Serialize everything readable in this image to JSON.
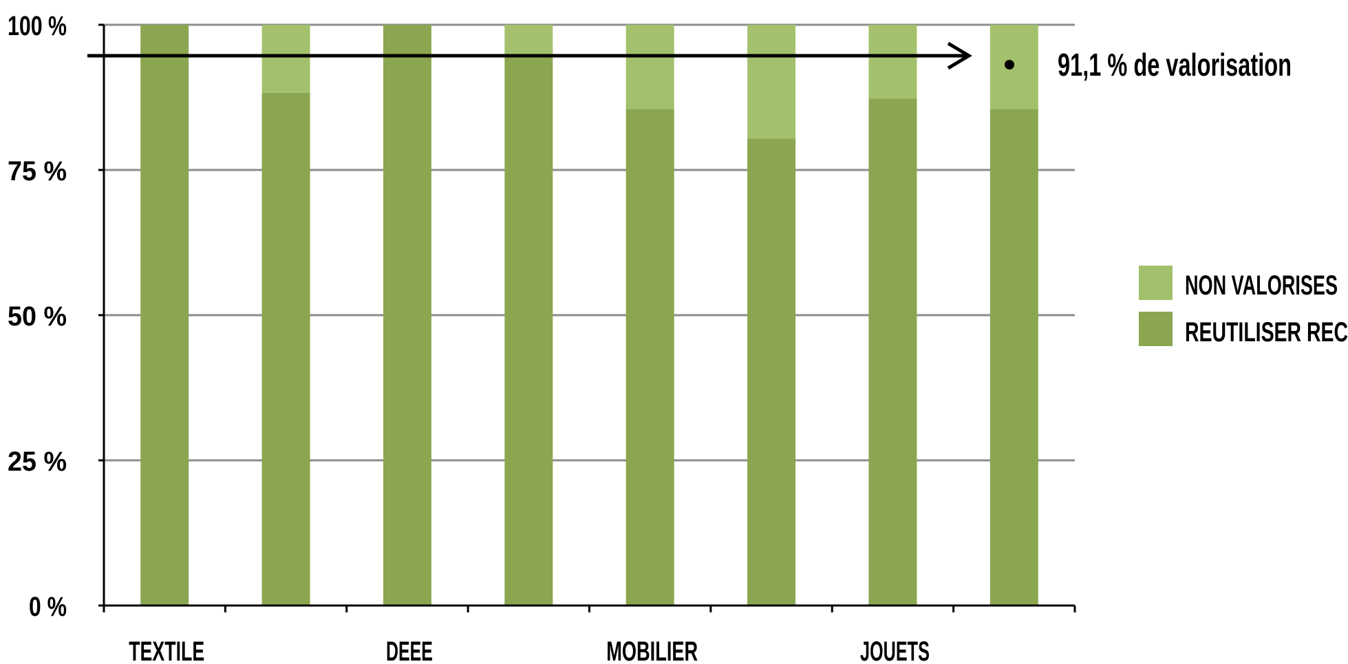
{
  "chart_data": {
    "type": "bar",
    "stacked": true,
    "categories": [
      "TEXTILE",
      "",
      "DEEE",
      "",
      "MOBILIER",
      "",
      "JOUETS",
      ""
    ],
    "series": [
      {
        "name": "REUTILISER  REC",
        "color": "#8ba650",
        "values": [
          100,
          88.3,
          100,
          94.5,
          85.5,
          80.4,
          87.3,
          85.5
        ]
      },
      {
        "name": "NON VALORISES",
        "color": "#a3c16d",
        "values": [
          0,
          11.7,
          0,
          5.5,
          14.5,
          19.6,
          12.7,
          14.5
        ]
      }
    ],
    "ylim": [
      0,
      100
    ],
    "yticks": [
      "0 %",
      "25 %",
      "50 %",
      "75 %",
      "100 %"
    ],
    "ytick_values": [
      0,
      25,
      50,
      75,
      100
    ],
    "grid": true,
    "legend_position": "right",
    "annotation": {
      "text": "91,1 % de valorisation",
      "y_value": 94.6
    }
  }
}
